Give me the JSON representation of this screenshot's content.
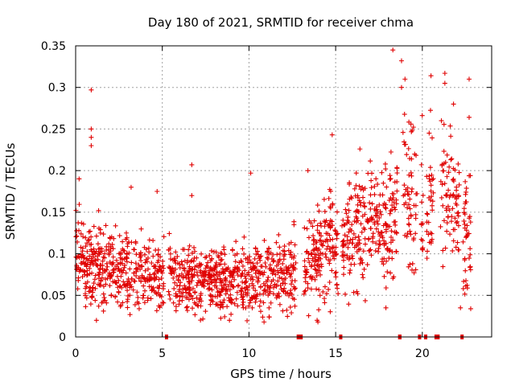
{
  "chart_data": {
    "type": "scatter",
    "title": "Day 180 of 2021, SRMTID for receiver chma",
    "xlabel": "GPS time / hours",
    "ylabel": "SRMTID / TECUs",
    "xlim": [
      0,
      24
    ],
    "ylim": [
      0,
      0.35
    ],
    "x_ticks": [
      0,
      5,
      10,
      15,
      20
    ],
    "x_tick_labels": [
      "0",
      "5",
      "10",
      "15",
      "20"
    ],
    "y_ticks": [
      0,
      0.05,
      0.1,
      0.15,
      0.2,
      0.25,
      0.3,
      0.35
    ],
    "y_tick_labels": [
      "0",
      "0.05",
      "0.1",
      "0.15",
      "0.2",
      "0.25",
      "0.3",
      "0.35"
    ],
    "grid": true,
    "marker": "+",
    "color": "#e00000",
    "x_range": [
      0,
      22.8
    ],
    "trend": [
      {
        "x": 0,
        "y": 0.095
      },
      {
        "x": 1,
        "y": 0.085
      },
      {
        "x": 2,
        "y": 0.08
      },
      {
        "x": 3,
        "y": 0.078
      },
      {
        "x": 4,
        "y": 0.075
      },
      {
        "x": 5,
        "y": 0.075
      },
      {
        "x": 6,
        "y": 0.07
      },
      {
        "x": 7,
        "y": 0.068
      },
      {
        "x": 8,
        "y": 0.068
      },
      {
        "x": 9,
        "y": 0.07
      },
      {
        "x": 10,
        "y": 0.072
      },
      {
        "x": 11,
        "y": 0.07
      },
      {
        "x": 12,
        "y": 0.08
      },
      {
        "x": 13,
        "y": 0.09
      },
      {
        "x": 14,
        "y": 0.1
      },
      {
        "x": 15,
        "y": 0.115
      },
      {
        "x": 16,
        "y": 0.12
      },
      {
        "x": 17,
        "y": 0.13
      },
      {
        "x": 18,
        "y": 0.13
      },
      {
        "x": 18.5,
        "y": 0.15
      },
      {
        "x": 19,
        "y": 0.19
      },
      {
        "x": 20,
        "y": 0.17
      },
      {
        "x": 21,
        "y": 0.18
      },
      {
        "x": 22,
        "y": 0.14
      },
      {
        "x": 22.8,
        "y": 0.11
      }
    ],
    "outliers": [
      {
        "x": 0.9,
        "y": 0.297
      },
      {
        "x": 0.9,
        "y": 0.25
      },
      {
        "x": 0.9,
        "y": 0.24
      },
      {
        "x": 0.9,
        "y": 0.23
      },
      {
        "x": 0.2,
        "y": 0.19
      },
      {
        "x": 6.7,
        "y": 0.207
      },
      {
        "x": 4.7,
        "y": 0.175
      },
      {
        "x": 3.2,
        "y": 0.18
      },
      {
        "x": 6.7,
        "y": 0.17
      },
      {
        "x": 10.1,
        "y": 0.197
      },
      {
        "x": 13.4,
        "y": 0.2
      },
      {
        "x": 18.3,
        "y": 0.345
      },
      {
        "x": 18.8,
        "y": 0.332
      },
      {
        "x": 18.8,
        "y": 0.3
      },
      {
        "x": 19.0,
        "y": 0.31
      },
      {
        "x": 20.5,
        "y": 0.314
      },
      {
        "x": 21.3,
        "y": 0.317
      },
      {
        "x": 21.3,
        "y": 0.305
      },
      {
        "x": 22.7,
        "y": 0.31
      },
      {
        "x": 21.1,
        "y": 0.26
      },
      {
        "x": 21.8,
        "y": 0.28
      },
      {
        "x": 22.7,
        "y": 0.264
      },
      {
        "x": 14.8,
        "y": 0.243
      },
      {
        "x": 16.4,
        "y": 0.226
      },
      {
        "x": 22.2,
        "y": 0.035
      },
      {
        "x": 17.9,
        "y": 0.035
      },
      {
        "x": 1.2,
        "y": 0.02
      }
    ],
    "data_gaps": [
      {
        "x_start": 5.15,
        "x_end": 5.3
      },
      {
        "x_start": 12.75,
        "x_end": 13.1
      },
      {
        "x_start": 15.2,
        "x_end": 15.3
      },
      {
        "x_start": 18.6,
        "x_end": 18.8
      },
      {
        "x_start": 19.75,
        "x_end": 19.85
      },
      {
        "x_start": 20.1,
        "x_end": 20.2
      },
      {
        "x_start": 20.7,
        "x_end": 21.0
      },
      {
        "x_start": 22.2,
        "x_end": 22.3
      }
    ]
  }
}
